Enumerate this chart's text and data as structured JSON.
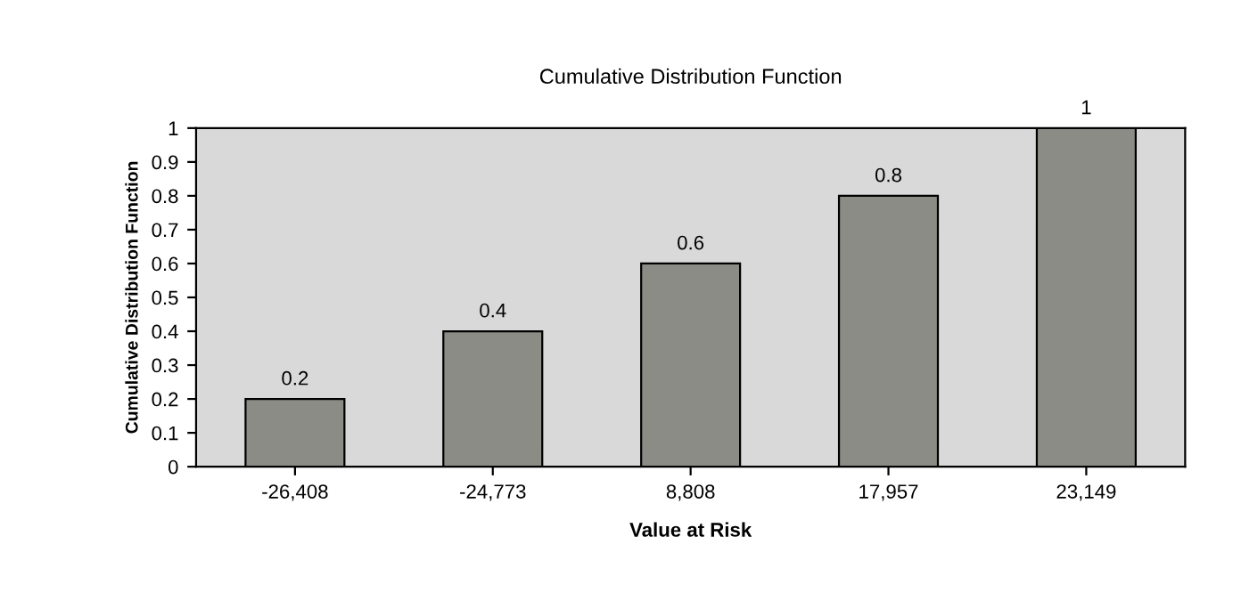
{
  "chart_data": {
    "type": "bar",
    "title": "Cumulative Distribution Function",
    "xlabel": "Value at Risk",
    "ylabel": "Cumulative Distribution Function",
    "categories": [
      "-26,408",
      "-24,773",
      "8,808",
      "17,957",
      "23,149"
    ],
    "values": [
      0.2,
      0.4,
      0.6,
      0.8,
      1
    ],
    "color": "#8c8c86",
    "ylim": [
      0,
      1
    ],
    "yticks": [
      0,
      0.1,
      0.2,
      0.3,
      0.4,
      0.5,
      0.6,
      0.7,
      0.8,
      0.9,
      1
    ],
    "grid": false,
    "legend": false,
    "data_labels": true
  }
}
